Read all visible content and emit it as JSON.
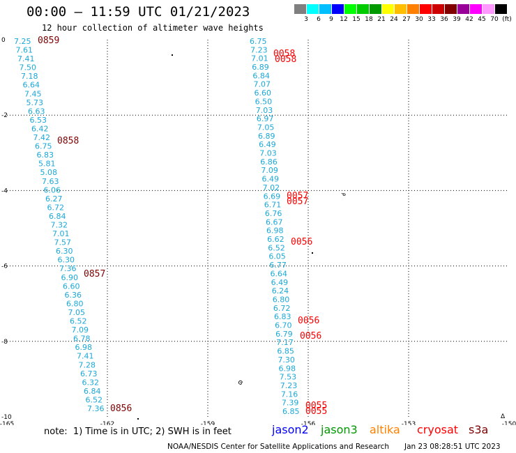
{
  "header": {
    "title": "00:00 – 11:59 UTC 01/21/2023",
    "subtitle": "12 hour collection of altimeter wave heights"
  },
  "legend": {
    "colors": [
      "#7f7f7f",
      "#00ffff",
      "#00bfff",
      "#0000ff",
      "#00ff00",
      "#00cc00",
      "#009900",
      "#ffff00",
      "#ffbf00",
      "#ff8000",
      "#ff0000",
      "#cc0000",
      "#800000",
      "#990099",
      "#ff00ff",
      "#ff99ff",
      "#000000"
    ],
    "labels": [
      "3",
      "6",
      "9",
      "12",
      "15",
      "18",
      "21",
      "24",
      "27",
      "30",
      "33",
      "36",
      "39",
      "42",
      "45",
      "70",
      "(ft)"
    ]
  },
  "axes": {
    "lon_ticks": [
      "-165",
      "-162",
      "-159",
      "-156",
      "-153",
      "-150"
    ],
    "lat_ticks": [
      "0",
      "-2",
      "-4",
      "-6",
      "-8",
      "-10"
    ],
    "lon_range": [
      -165,
      -150
    ],
    "lat_range": [
      0,
      -10
    ]
  },
  "tracks": [
    {
      "name": "left-track",
      "values": [
        "7.25",
        "7.61",
        "7.41",
        "7.50",
        "7.18",
        "6.64",
        "7.45",
        "5.73",
        "6.63",
        "6.53",
        "6.42",
        "7.42",
        "6.75",
        "6.83",
        "5.81",
        "5.08",
        "7.63",
        "6.06",
        "6.27",
        "6.72",
        "6.84",
        "7.32",
        "7.01",
        "7.57",
        "6.30",
        "6.30",
        "7.36",
        "6.90",
        "6.60",
        "6.36",
        "6.80",
        "7.05",
        "6.52",
        "7.09",
        "6.78",
        "6.98",
        "7.41",
        "7.28",
        "6.73",
        "6.32",
        "6.84",
        "6.52",
        "7.36"
      ],
      "times": [
        "0859",
        "0858",
        "0857",
        "0856"
      ],
      "time_color": "#800000"
    },
    {
      "name": "right-track",
      "values": [
        "6.75",
        "7.23",
        "7.01",
        "6.89",
        "6.84",
        "7.07",
        "6.60",
        "6.50",
        "7.03",
        "6.97",
        "7.05",
        "6.89",
        "6.49",
        "7.03",
        "6.86",
        "7.09",
        "6.49",
        "7.02",
        "6.69",
        "6.71",
        "6.76",
        "6.67",
        "6.98",
        "6.62",
        "6.52",
        "6.05",
        "6.77",
        "6.64",
        "6.49",
        "6.24",
        "6.80",
        "6.72",
        "6.83",
        "6.70",
        "6.79",
        "7.17",
        "6.85",
        "7.30",
        "6.98",
        "7.53",
        "7.23",
        "7.16",
        "7.39",
        "6.85"
      ],
      "times": [
        "0058",
        "0058",
        "0057",
        "0057",
        "0056",
        "0056",
        "0056",
        "0055",
        "0055"
      ],
      "time_color": "#ff0000"
    }
  ],
  "footer": {
    "note": "note:  1) Time is in UTC; 2) SWH is in feet",
    "satellites": [
      {
        "name": "jason2",
        "color": "#0000ff"
      },
      {
        "name": "jason3",
        "color": "#009900"
      },
      {
        "name": "altika",
        "color": "#ff8000"
      },
      {
        "name": "cryosat",
        "color": "#ff0000"
      },
      {
        "name": "s3a",
        "color": "#800000"
      }
    ],
    "credit": "NOAA/NESDIS Center for Satellite Applications and Research",
    "timestamp": "Jan 23 08:28:51 UTC 2023"
  }
}
